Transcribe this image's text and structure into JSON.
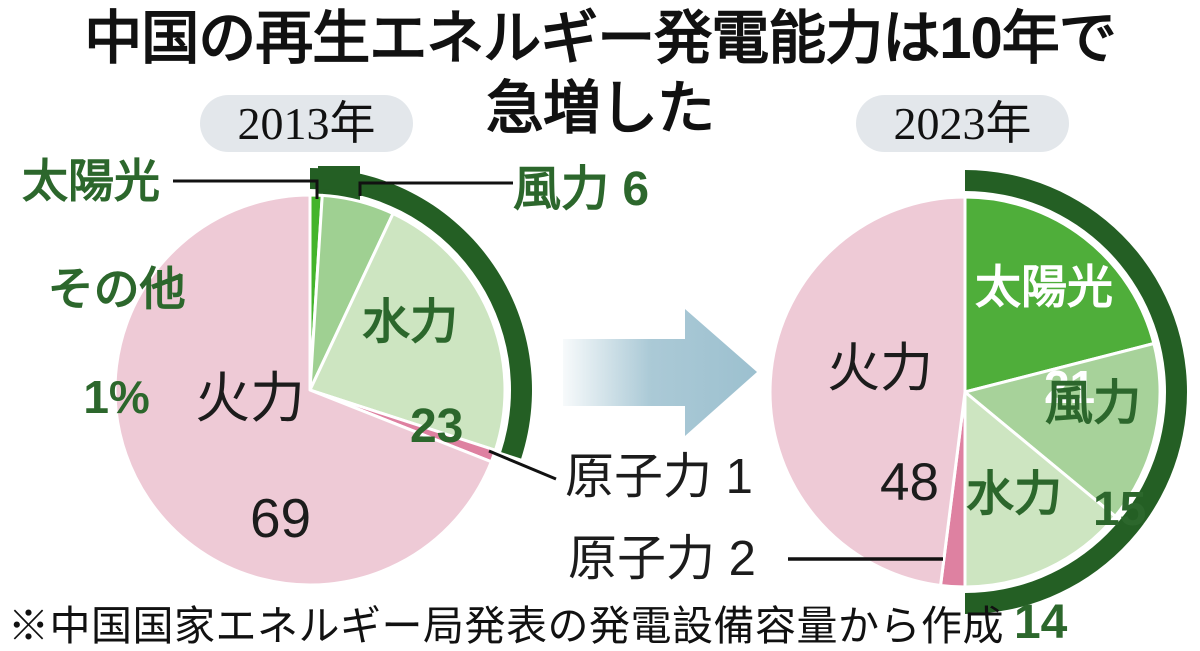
{
  "title": {
    "line1": "中国の再生エネルギー発電能力は10年で",
    "line2": "急増した"
  },
  "footnote": "※中国国家エネルギー局発表の発電設備容量から作成",
  "colors": {
    "renewable_arc_green": "#245f24",
    "label_green": "#2c672c",
    "label_black": "#1c1c1c",
    "solar_green_2013": "#44b42c",
    "solar_green_2023": "#4fae3a",
    "wind_green": "#a3d196",
    "hydro_green": "#cde5c1",
    "nuclear_pink": "#de81a1",
    "thermal_pink": "#eecad6",
    "arrow_blue": "#9cc0cf",
    "year_badge_bg": "#e3e7eb"
  },
  "chart_data": [
    {
      "type": "pie",
      "year_label": "2013年",
      "unit": "%",
      "order": "clockwise from 12 o'clock",
      "slices": [
        {
          "name": "太陽光その他",
          "value": 1,
          "color": "#44b42c"
        },
        {
          "name": "風力",
          "value": 6,
          "color": "#9fd092"
        },
        {
          "name": "水力",
          "value": 23,
          "color": "#cde5c1"
        },
        {
          "name": "原子力",
          "value": 1,
          "color": "#de81a1"
        },
        {
          "name": "火力",
          "value": 69,
          "color": "#eecad6"
        }
      ],
      "renewable_arc": {
        "covers": [
          "太陽光その他",
          "風力",
          "水力"
        ],
        "color": "#245f24"
      }
    },
    {
      "type": "pie",
      "year_label": "2023年",
      "unit": "%",
      "order": "clockwise from 12 o'clock",
      "slices": [
        {
          "name": "太陽光",
          "value": 21,
          "color": "#4fae3a"
        },
        {
          "name": "風力",
          "value": 15,
          "color": "#a7d29a"
        },
        {
          "name": "水力",
          "value": 14,
          "color": "#cde5c1"
        },
        {
          "name": "原子力",
          "value": 2,
          "color": "#de81a1"
        },
        {
          "name": "火力",
          "value": 48,
          "color": "#eecad6"
        }
      ],
      "renewable_arc": {
        "covers": [
          "太陽光",
          "風力",
          "水力"
        ],
        "color": "#245f24"
      }
    }
  ],
  "labels": {
    "pie2013": {
      "solar_line1": "太陽光",
      "solar_line2": "その他",
      "solar_line3": "1%",
      "wind": "風力 6",
      "hydro_name": "水力",
      "hydro_value": "23",
      "thermal_name": "火力",
      "thermal_value": "69",
      "nuclear": "原子力 1"
    },
    "pie2023": {
      "solar_name": "太陽光",
      "solar_value": "21",
      "wind_name": "風力",
      "wind_value": "15",
      "hydro_name": "水力",
      "hydro_value": "14",
      "thermal_name": "火力",
      "thermal_value": "48",
      "nuclear": "原子力 2"
    }
  }
}
